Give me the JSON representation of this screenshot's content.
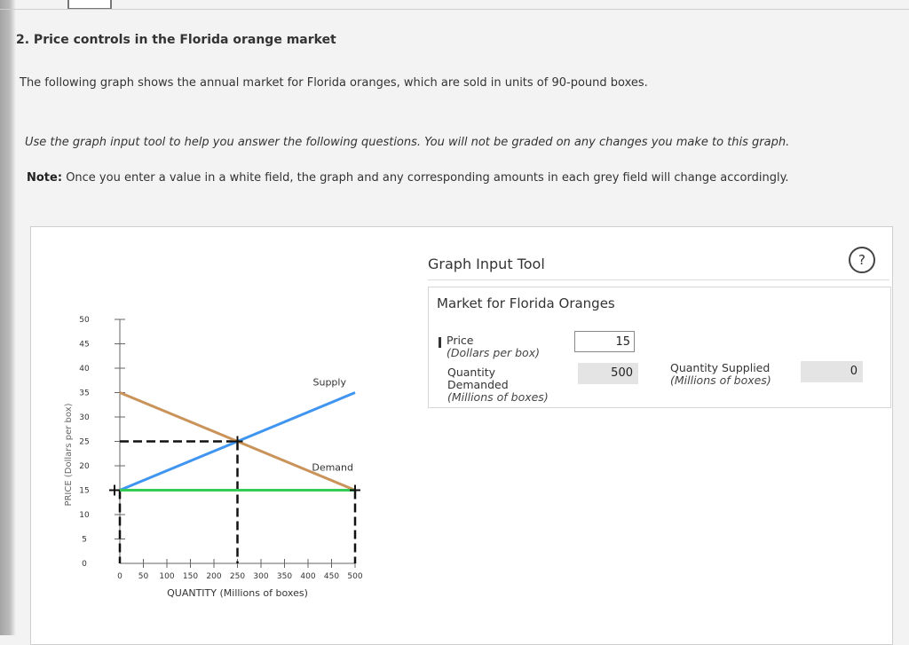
{
  "question": {
    "title": "2. Price controls in the Florida orange market",
    "intro": "The following graph shows the annual market for Florida oranges, which are sold in units of 90-pound boxes.",
    "instructions": "Use the graph input tool to help you answer the following questions. You will not be graded on any changes you make to this graph.",
    "note_label": "Note:",
    "note_text": "Once you enter a value in a white field, the graph and any corresponding amounts in each grey field will change accordingly."
  },
  "tool": {
    "title": "Graph Input Tool",
    "help_label": "?",
    "market_title": "Market for Florida Oranges",
    "price_label": "Price",
    "price_unit": "(Dollars per box)",
    "price_value": "15",
    "qd_label_1": "Quantity",
    "qd_label_2": "Demanded",
    "qd_unit": "(Millions of boxes)",
    "qd_value": "500",
    "qs_label": "Quantity Supplied",
    "qs_unit": "(Millions of boxes)",
    "qs_value": "0"
  },
  "chart_data": {
    "type": "line",
    "xlabel": "QUANTITY (Millions of boxes)",
    "ylabel": "PRICE (Dollars per box)",
    "xlim": [
      0,
      500
    ],
    "ylim": [
      0,
      50
    ],
    "xticks": [
      "0",
      "50",
      "100",
      "150",
      "200",
      "250",
      "300",
      "350",
      "400",
      "450",
      "500"
    ],
    "yticks": [
      "0",
      "5",
      "10",
      "15",
      "20",
      "25",
      "30",
      "35",
      "40",
      "45",
      "50"
    ],
    "series": [
      {
        "name": "Supply",
        "color": "#3f95f0",
        "x": [
          0,
          500
        ],
        "y": [
          15,
          35
        ]
      },
      {
        "name": "Demand",
        "color": "#c9935a",
        "x": [
          0,
          500
        ],
        "y": [
          35,
          15
        ]
      }
    ],
    "price_control": {
      "color": "#33cc55",
      "price": 15,
      "x": [
        0,
        500
      ]
    },
    "equilibrium": {
      "quantity": 250,
      "price": 25
    },
    "guide_color": "#111111"
  }
}
